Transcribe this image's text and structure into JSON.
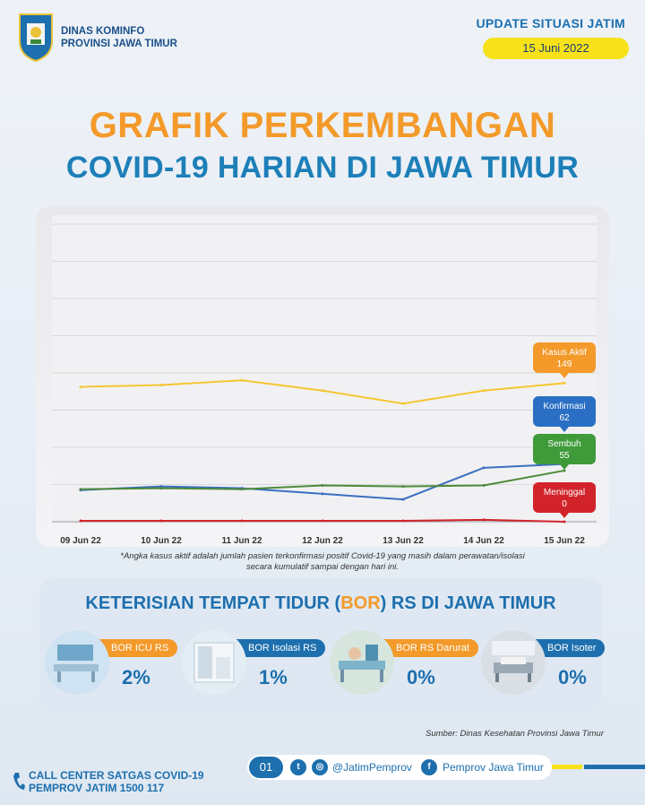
{
  "header": {
    "org_line1": "DINAS KOMINFO",
    "org_line2": "PROVINSI JAWA TIMUR",
    "update_label": "UPDATE SITUASI JATIM",
    "date": "15 Juni 2022"
  },
  "title": {
    "line1": "GRAFIK PERKEMBANGAN",
    "line2": "COVID-19 HARIAN DI JAWA TIMUR"
  },
  "colors": {
    "orange": "#f39a2a",
    "blue": "#1d6fae",
    "yellow": "#f7e21a",
    "kasus_aktif": "#f5c531",
    "konfirmasi": "#3a6fc1",
    "sembuh": "#4e8a3a",
    "meninggal": "#d2232a"
  },
  "chart_data": {
    "type": "line",
    "title": "GRAFIK PERKEMBANGAN COVID-19 HARIAN DI JAWA TIMUR",
    "categories": [
      "09 Jun 22",
      "10 Jun 22",
      "11 Jun 22",
      "12 Jun 22",
      "13 Jun 22",
      "14 Jun 22",
      "15 Jun 22"
    ],
    "ylim": [
      0,
      320
    ],
    "grid": true,
    "series": [
      {
        "name": "Kasus Aktif",
        "color": "#f5c531",
        "values": [
          145,
          147,
          152,
          141,
          127,
          141,
          149
        ],
        "end_label": "149",
        "label_color": "#f39a2a"
      },
      {
        "name": "Konfirmasi",
        "color": "#3a6fc1",
        "values": [
          34,
          38,
          36,
          30,
          24,
          58,
          62
        ],
        "end_label": "62",
        "label_color": "#2a6fc4"
      },
      {
        "name": "Sembuh",
        "color": "#4e8a3a",
        "values": [
          35,
          36,
          35,
          39,
          38,
          39,
          55
        ],
        "end_label": "55",
        "label_color": "#3f9a3a"
      },
      {
        "name": "Meninggal",
        "color": "#d2232a",
        "values": [
          1,
          1,
          1,
          1,
          1,
          2,
          0
        ],
        "end_label": "0",
        "label_color": "#d2232a"
      }
    ]
  },
  "footnote": {
    "line1": "*Angka kasus aktif adalah jumlah pasien terkonfirmasi positif Covid-19 yang masih dalam perawatan/isolasi",
    "line2": "secara kumulatif sampai dengan hari ini."
  },
  "bor": {
    "title_pre": "KETERISIAN TEMPAT TIDUR (",
    "title_hl": "BOR",
    "title_post": ") RS DI JAWA TIMUR",
    "items": [
      {
        "label": "BOR ICU RS",
        "value": "2%",
        "color": "#f39a2a"
      },
      {
        "label": "BOR Isolasi RS",
        "value": "1%",
        "color": "#1d6fae"
      },
      {
        "label": "BOR RS Darurat",
        "value": "0%",
        "color": "#f39a2a"
      },
      {
        "label": "BOR Isoter",
        "value": "0%",
        "color": "#1d6fae"
      }
    ]
  },
  "source": "Sumber: Dinas Kesehatan Provinsi Jawa Timur",
  "footer": {
    "call_line1": "CALL CENTER SATGAS COVID-19",
    "call_line2": "PEMPROV JATIM 1500 117",
    "page": "01",
    "twitter_ig": "@JatimPemprov",
    "facebook": "Pemprov Jawa Timur"
  }
}
